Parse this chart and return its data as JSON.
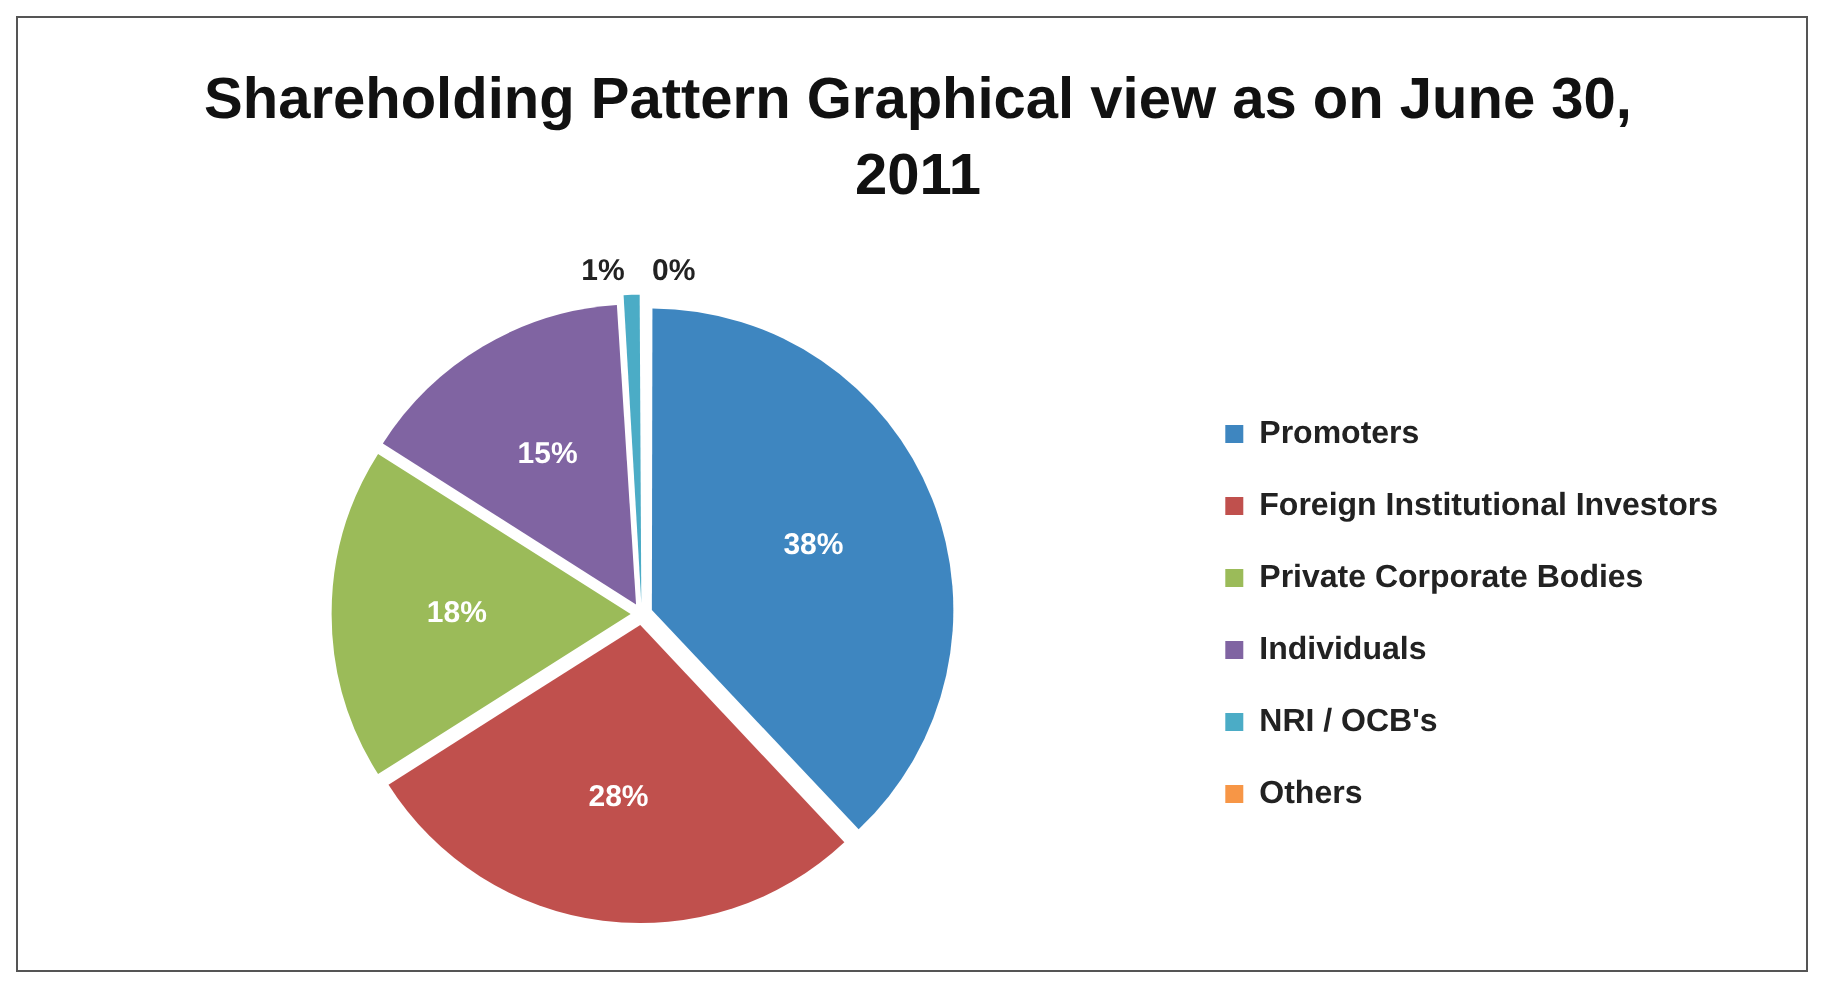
{
  "chart_data": {
    "type": "pie",
    "title": "Shareholding Pattern Graphical view as on June 30, 2011",
    "categories": [
      "Promoters",
      "Foreign Institutional Investors",
      "Private Corporate Bodies",
      "Individuals",
      "NRI / OCB's",
      "Others"
    ],
    "values": [
      38,
      28,
      18,
      15,
      1,
      0
    ],
    "value_labels": [
      "38%",
      "28%",
      "18%",
      "15%",
      "1%",
      "0%"
    ],
    "colors": [
      "#3e86c0",
      "#c0504d",
      "#9bbb59",
      "#8064a2",
      "#4bacc6",
      "#f79646"
    ],
    "legend": "right"
  }
}
